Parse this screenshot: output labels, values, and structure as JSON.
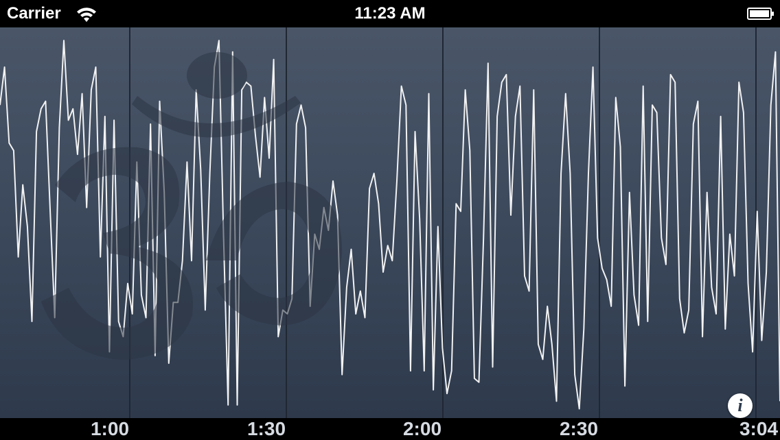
{
  "status_bar": {
    "carrier": "Carrier",
    "time": "11:23 AM",
    "wifi_icon": "wifi-icon",
    "battery_icon": "battery-icon"
  },
  "chart": {
    "background_top": "#4a5668",
    "background_bottom": "#2e3a4c",
    "line_color": "#f2f2f2",
    "gridline_color": "#1f2733",
    "watermark_icon": "om-symbol-icon"
  },
  "timeline": {
    "labels": [
      "1:00",
      "1:30",
      "2:00",
      "2:30",
      "3:04"
    ]
  },
  "info_button": {
    "label": "i",
    "icon": "info-icon"
  },
  "chart_data": {
    "type": "line",
    "title": "",
    "xlabel": "",
    "ylabel": "",
    "x_ticks": [
      "1:00",
      "1:30",
      "2:00",
      "2:30",
      "3:04"
    ],
    "grid": true,
    "ylim": [
      0,
      1
    ],
    "series": [
      {
        "values": [
          0.81,
          0.91,
          0.71,
          0.69,
          0.41,
          0.6,
          0.49,
          0.24,
          0.74,
          0.8,
          0.82,
          0.53,
          0.25,
          0.75,
          0.98,
          0.77,
          0.8,
          0.68,
          0.84,
          0.54,
          0.85,
          0.91,
          0.41,
          0.78,
          0.16,
          0.77,
          0.24,
          0.2,
          0.34,
          0.26,
          0.66,
          0.31,
          0.25,
          0.76,
          0.15,
          0.82,
          0.58,
          0.13,
          0.29,
          0.29,
          0.4,
          0.66,
          0.4,
          0.85,
          0.64,
          0.27,
          0.63,
          0.91,
          0.98,
          0.47,
          0.02,
          0.95,
          0.02,
          0.85,
          0.87,
          0.86,
          0.73,
          0.62,
          0.83,
          0.67,
          0.93,
          0.2,
          0.27,
          0.26,
          0.3,
          0.76,
          0.81,
          0.75,
          0.28,
          0.47,
          0.43,
          0.54,
          0.48,
          0.61,
          0.52,
          0.1,
          0.33,
          0.43,
          0.26,
          0.32,
          0.25,
          0.59,
          0.63,
          0.55,
          0.37,
          0.44,
          0.4,
          0.61,
          0.86,
          0.81,
          0.11,
          0.74,
          0.51,
          0.11,
          0.84,
          0.06,
          0.49,
          0.17,
          0.05,
          0.11,
          0.55,
          0.53,
          0.85,
          0.69,
          0.09,
          0.08,
          0.46,
          0.92,
          0.12,
          0.78,
          0.87,
          0.89,
          0.52,
          0.78,
          0.86,
          0.36,
          0.32,
          0.85,
          0.18,
          0.14,
          0.28,
          0.18,
          0.03,
          0.63,
          0.84,
          0.63,
          0.1,
          0.01,
          0.22,
          0.63,
          0.91,
          0.46,
          0.38,
          0.35,
          0.28,
          0.83,
          0.7,
          0.07,
          0.58,
          0.31,
          0.23,
          0.86,
          0.24,
          0.81,
          0.79,
          0.46,
          0.39,
          0.89,
          0.87,
          0.3,
          0.21,
          0.27,
          0.76,
          0.82,
          0.2,
          0.58,
          0.33,
          0.26,
          0.78,
          0.22,
          0.47,
          0.36,
          0.87,
          0.79,
          0.34,
          0.16,
          0.53,
          0.19,
          0.37,
          0.81,
          0.95,
          0.03
        ]
      }
    ]
  }
}
